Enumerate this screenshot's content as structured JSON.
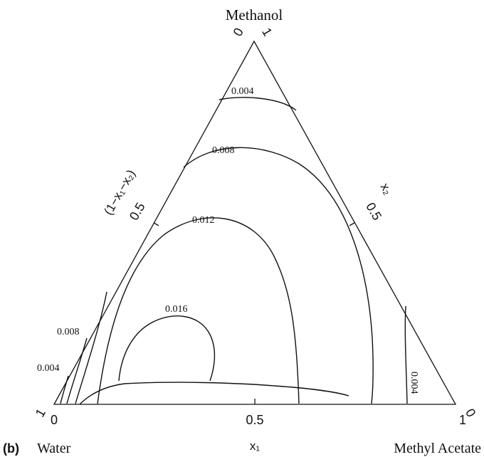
{
  "figure": {
    "panel_label": "(b)",
    "vertex_top": "Methanol",
    "vertex_left": "Water",
    "vertex_right": "Methyl Acetate",
    "axis_bottom_label": "x₁",
    "axis_right_label": "x₂",
    "axis_left_label": "(1−x₁−x₂)",
    "ticks": {
      "bottom": [
        "0",
        "0.5",
        "1"
      ],
      "right": [
        "0",
        "0.5",
        "1"
      ],
      "left": [
        "1",
        "0.5",
        "0"
      ]
    }
  },
  "contours": [
    {
      "label": "0.004"
    },
    {
      "label": "0.008"
    },
    {
      "label": "0.012"
    },
    {
      "label": "0.016"
    },
    {
      "label": "0.008"
    },
    {
      "label": "0.004"
    },
    {
      "label": "0.004"
    }
  ]
}
